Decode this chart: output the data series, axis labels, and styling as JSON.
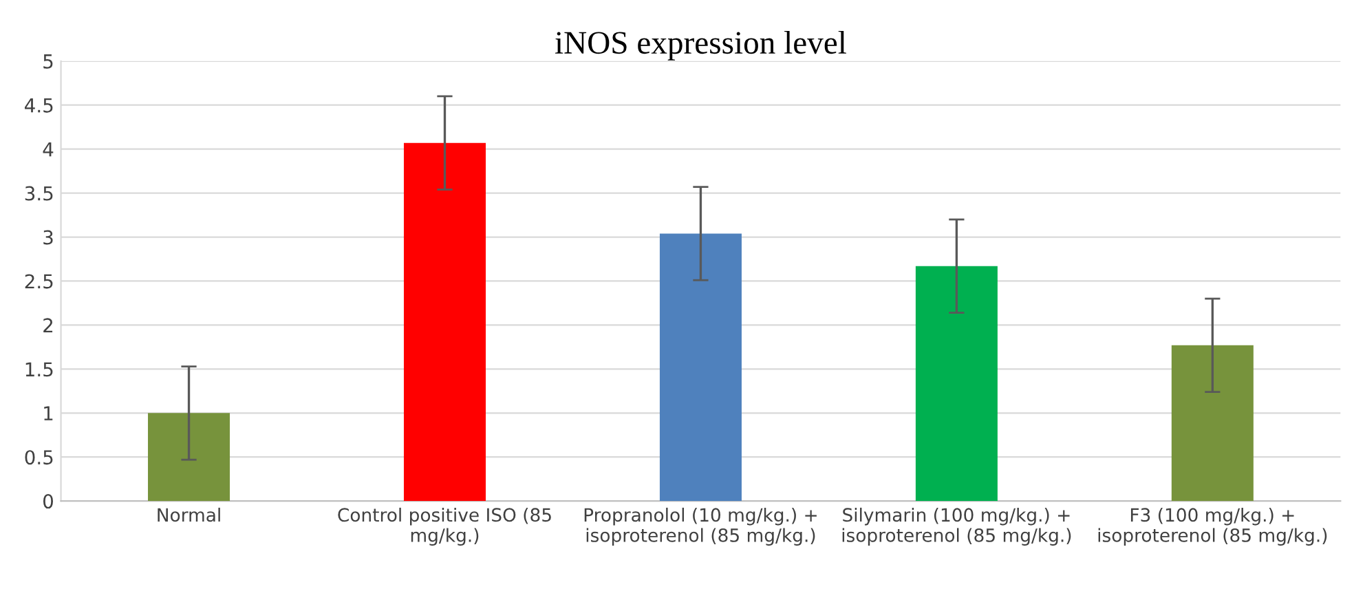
{
  "chart_data": {
    "type": "bar",
    "title": "iNOS expression level",
    "categories": [
      "Normal",
      "Control positive ISO (85 mg/kg.)",
      "Propranolol (10 mg/kg.) + isoproterenol (85 mg/kg.)",
      "Silymarin (100 mg/kg.) + isoproterenol (85 mg/kg.)",
      "F3 (100 mg/kg.) + isoproterenol (85 mg/kg.)"
    ],
    "values": [
      1.0,
      4.07,
      3.04,
      2.67,
      1.77
    ],
    "errors": [
      0.53,
      0.53,
      0.53,
      0.53,
      0.53
    ],
    "colors": [
      "#77933c",
      "#ff0000",
      "#4f81bd",
      "#00b050",
      "#77933c"
    ],
    "ylim": [
      0,
      5
    ],
    "yticks": [
      0,
      0.5,
      1,
      1.5,
      2,
      2.5,
      3,
      3.5,
      4,
      4.5,
      5
    ],
    "grid": "y"
  }
}
